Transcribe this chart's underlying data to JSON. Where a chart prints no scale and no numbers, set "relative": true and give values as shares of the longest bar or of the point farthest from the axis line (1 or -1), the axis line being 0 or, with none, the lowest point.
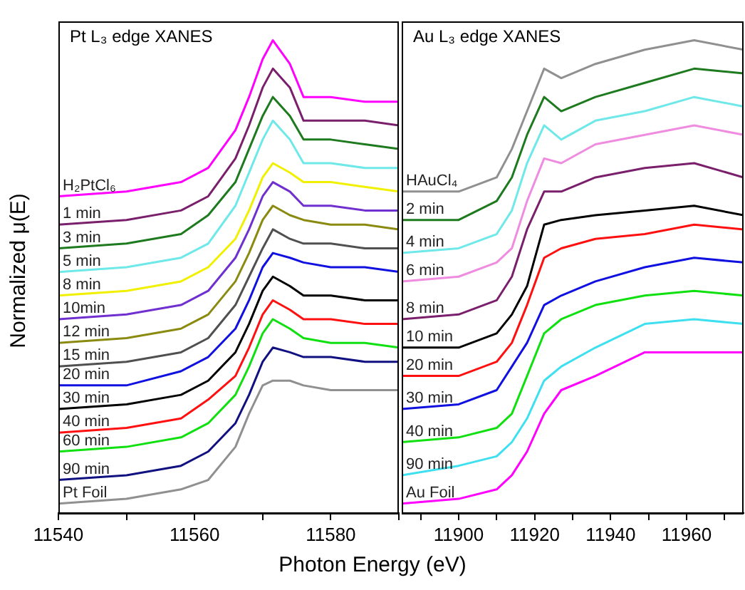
{
  "chart_data": [
    {
      "type": "line",
      "title": "Pt L₃ edge XANES",
      "xlabel": "Photon Energy (eV)",
      "ylabel": "Normalized μ(E)",
      "relative": true,
      "x": [
        11540,
        11550,
        11558,
        11562,
        11566,
        11568,
        11570,
        11571.5,
        11574,
        11576,
        11580,
        11585,
        11590
      ],
      "xlim": [
        11540,
        11590
      ],
      "xticks": [
        11540,
        {
          "value": 11550,
          "label": null
        },
        11560,
        {
          "value": 11570,
          "label": null
        },
        11580,
        {
          "value": 11590,
          "label": null
        }
      ],
      "series": [
        {
          "name": "H₂PtCl₆",
          "color": "#ff00ff",
          "values": [
            0.67,
            0.68,
            0.7,
            0.73,
            0.81,
            0.88,
            0.96,
            1,
            0.95,
            0.88,
            0.88,
            0.87,
            0.87
          ]
        },
        {
          "name": "1 min",
          "color": "#7a1f6b",
          "values": [
            0.61,
            0.62,
            0.64,
            0.67,
            0.75,
            0.82,
            0.9,
            0.94,
            0.9,
            0.83,
            0.83,
            0.83,
            0.82
          ]
        },
        {
          "name": "3 min",
          "color": "#1e7a1e",
          "values": [
            0.56,
            0.57,
            0.59,
            0.63,
            0.7,
            0.77,
            0.84,
            0.88,
            0.84,
            0.79,
            0.79,
            0.78,
            0.77
          ]
        },
        {
          "name": "5 min",
          "color": "#6ee8e8",
          "values": [
            0.51,
            0.52,
            0.54,
            0.57,
            0.65,
            0.72,
            0.79,
            0.83,
            0.79,
            0.74,
            0.74,
            0.73,
            0.73
          ]
        },
        {
          "name": "8 min",
          "color": "#f0f000",
          "values": [
            0.46,
            0.47,
            0.49,
            0.52,
            0.58,
            0.64,
            0.71,
            0.74,
            0.72,
            0.7,
            0.7,
            0.69,
            0.68
          ]
        },
        {
          "name": "10min",
          "color": "#7030d0",
          "values": [
            0.41,
            0.42,
            0.44,
            0.47,
            0.54,
            0.6,
            0.67,
            0.7,
            0.68,
            0.65,
            0.65,
            0.64,
            0.64
          ]
        },
        {
          "name": "12 min",
          "color": "#8a8a10",
          "values": [
            0.36,
            0.37,
            0.39,
            0.42,
            0.49,
            0.55,
            0.62,
            0.65,
            0.63,
            0.62,
            0.61,
            0.61,
            0.6
          ]
        },
        {
          "name": "15 min",
          "color": "#505050",
          "values": [
            0.31,
            0.32,
            0.34,
            0.37,
            0.44,
            0.5,
            0.56,
            0.6,
            0.58,
            0.57,
            0.57,
            0.56,
            0.56
          ]
        },
        {
          "name": "20 min",
          "color": "#1010e0",
          "values": [
            0.27,
            0.27,
            0.3,
            0.33,
            0.39,
            0.45,
            0.52,
            0.55,
            0.54,
            0.53,
            0.52,
            0.52,
            0.51
          ]
        },
        {
          "name": "30 min",
          "color": "#000000",
          "values": [
            0.22,
            0.23,
            0.25,
            0.28,
            0.34,
            0.4,
            0.47,
            0.5,
            0.48,
            0.46,
            0.46,
            0.45,
            0.45
          ]
        },
        {
          "name": "40 min",
          "color": "#ff1010",
          "values": [
            0.17,
            0.18,
            0.2,
            0.24,
            0.29,
            0.35,
            0.42,
            0.45,
            0.43,
            0.41,
            0.41,
            0.4,
            0.4
          ]
        },
        {
          "name": "60 min",
          "color": "#10e010",
          "values": [
            0.13,
            0.14,
            0.16,
            0.19,
            0.25,
            0.31,
            0.38,
            0.41,
            0.39,
            0.37,
            0.36,
            0.36,
            0.35
          ]
        },
        {
          "name": "90 min",
          "color": "#101080",
          "values": [
            0.07,
            0.08,
            0.1,
            0.13,
            0.19,
            0.25,
            0.32,
            0.35,
            0.34,
            0.33,
            0.33,
            0.32,
            0.32
          ]
        },
        {
          "name": "Pt Foil",
          "color": "#909090",
          "values": [
            0.02,
            0.03,
            0.05,
            0.07,
            0.14,
            0.21,
            0.27,
            0.28,
            0.28,
            0.27,
            0.26,
            0.26,
            0.26
          ]
        }
      ]
    },
    {
      "type": "line",
      "title": "Au L₃ edge XANES",
      "relative": true,
      "x": [
        11885,
        11900,
        11910,
        11914,
        11918,
        11922.5,
        11927,
        11936,
        11949,
        11962,
        11975
      ],
      "xlim": [
        11885,
        11975
      ],
      "xticks": [
        {
          "value": 11890,
          "label": null
        },
        11900,
        {
          "value": 11910,
          "label": null
        },
        11920,
        {
          "value": 11930,
          "label": null
        },
        11940,
        {
          "value": 11950,
          "label": null
        },
        11960,
        {
          "value": 11970,
          "label": null
        }
      ],
      "series": [
        {
          "name": "HAuCl₄",
          "color": "#909090",
          "values": [
            0.68,
            0.68,
            0.71,
            0.77,
            0.85,
            0.94,
            0.92,
            0.95,
            0.98,
            1,
            0.98
          ]
        },
        {
          "name": "2 min",
          "color": "#1e7a1e",
          "values": [
            0.62,
            0.62,
            0.66,
            0.71,
            0.8,
            0.88,
            0.85,
            0.88,
            0.91,
            0.94,
            0.93
          ]
        },
        {
          "name": "4 min",
          "color": "#6ee8e8",
          "values": [
            0.55,
            0.56,
            0.59,
            0.64,
            0.74,
            0.82,
            0.79,
            0.83,
            0.85,
            0.88,
            0.86
          ]
        },
        {
          "name": "6 min",
          "color": "#f08ce0",
          "values": [
            0.49,
            0.5,
            0.53,
            0.56,
            0.66,
            0.75,
            0.74,
            0.78,
            0.8,
            0.82,
            0.8
          ]
        },
        {
          "name": "8 min",
          "color": "#7a1f6b",
          "values": [
            0.41,
            0.42,
            0.45,
            0.5,
            0.6,
            0.68,
            0.68,
            0.71,
            0.73,
            0.74,
            0.71
          ]
        },
        {
          "name": "10 min",
          "color": "#000000",
          "values": [
            0.35,
            0.35,
            0.38,
            0.42,
            0.48,
            0.61,
            0.62,
            0.63,
            0.64,
            0.65,
            0.63
          ]
        },
        {
          "name": "20 min",
          "color": "#ff1010",
          "values": [
            0.29,
            0.29,
            0.32,
            0.36,
            0.44,
            0.54,
            0.56,
            0.58,
            0.59,
            0.61,
            0.6
          ]
        },
        {
          "name": "30 min",
          "color": "#1010e0",
          "values": [
            0.22,
            0.23,
            0.26,
            0.31,
            0.36,
            0.44,
            0.46,
            0.49,
            0.52,
            0.54,
            0.53
          ]
        },
        {
          "name": "40 min",
          "color": "#10e010",
          "values": [
            0.15,
            0.16,
            0.18,
            0.21,
            0.29,
            0.38,
            0.41,
            0.44,
            0.46,
            0.47,
            0.46
          ]
        },
        {
          "name": "90 min",
          "color": "#3ee0f0",
          "values": [
            0.08,
            0.1,
            0.12,
            0.15,
            0.2,
            0.28,
            0.31,
            0.35,
            0.4,
            0.41,
            0.4
          ]
        },
        {
          "name": "Au Foil",
          "color": "#ff00ff",
          "values": [
            0.02,
            0.03,
            0.05,
            0.08,
            0.13,
            0.21,
            0.26,
            0.29,
            0.34,
            0.34,
            0.34
          ]
        }
      ]
    }
  ]
}
